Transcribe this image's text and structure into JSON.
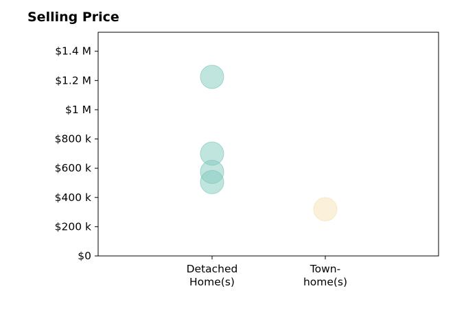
{
  "chart_data": {
    "type": "scatter",
    "title": "Selling Price",
    "xlabel": "",
    "ylabel": "",
    "categories": [
      "Detached\nHome(s)",
      "Town-\nhome(s)"
    ],
    "y_ticks": [
      0,
      200000,
      400000,
      600000,
      800000,
      1000000,
      1200000,
      1400000
    ],
    "y_tick_labels": [
      "$0",
      "$200 k",
      "$400 k",
      "$600 k",
      "$800 k",
      "$1 M",
      "$1.2 M",
      "$1.4 M"
    ],
    "ylim": [
      0,
      1530000
    ],
    "grid": false,
    "series": [
      {
        "category": "Detached\nHome(s)",
        "color": "#82c9bd",
        "values": [
          1225000,
          700000,
          575000,
          505000
        ]
      },
      {
        "category": "Town-\nhome(s)",
        "color": "#f7e1b4",
        "values": [
          320000
        ]
      }
    ]
  }
}
